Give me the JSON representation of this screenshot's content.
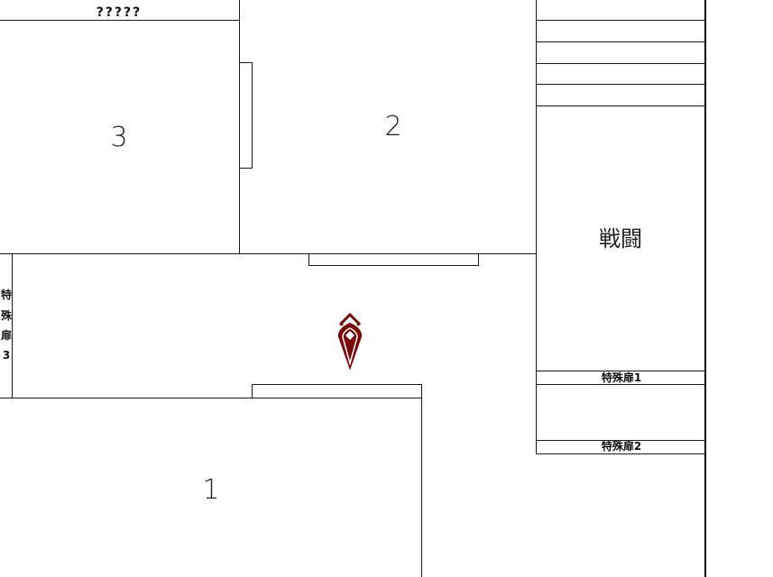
{
  "rooms": {
    "unknown": "?????",
    "room_1": "1",
    "room_2": "2",
    "room_3": "3",
    "battle": "戦闘"
  },
  "doors": {
    "special_door_1": "特殊扉1",
    "special_door_2": "特殊扉2",
    "special_door_3_chars": [
      "特",
      "殊",
      "扉",
      "3"
    ]
  },
  "marker": {
    "icon": "location-pin-icon",
    "color": "#7a0a0a"
  }
}
